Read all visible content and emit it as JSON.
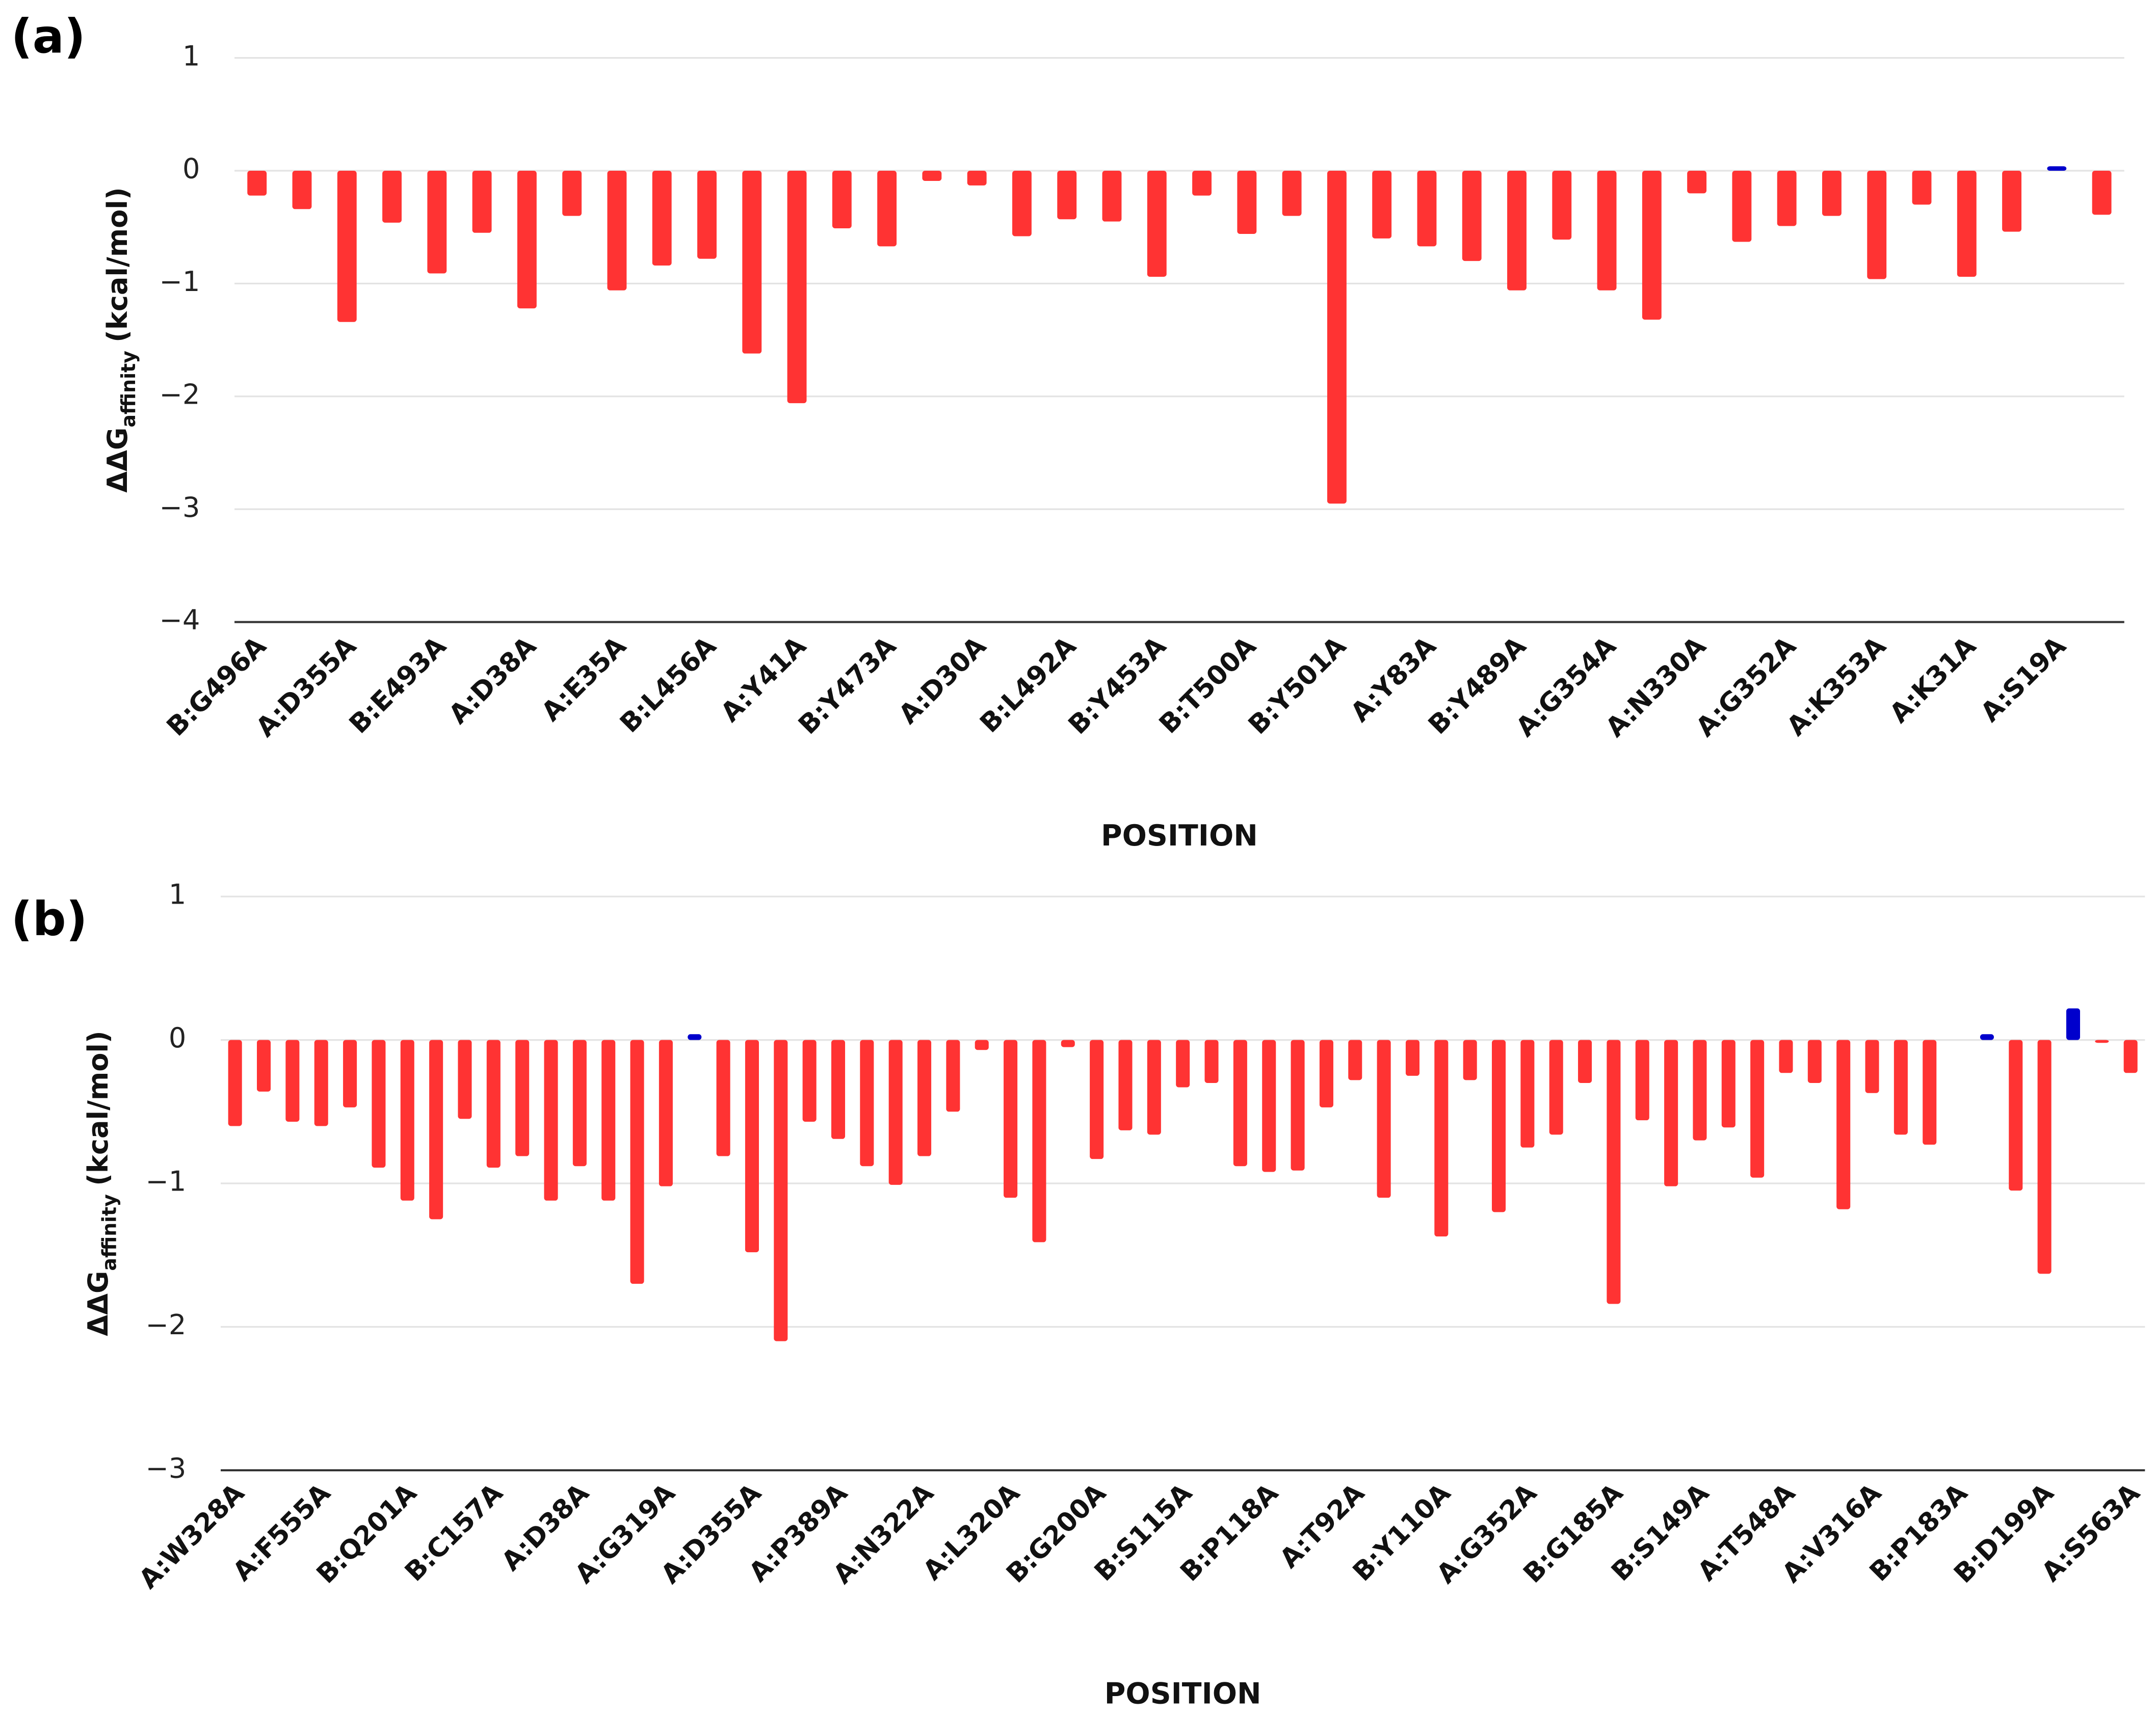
{
  "chart_data": [
    {
      "type": "bar",
      "panel_label": "(a)",
      "x_label": "POSITION",
      "y_label": {
        "main": "ΔΔG",
        "sub": "affinity",
        "unit": "(kcal/mol)"
      },
      "categories": [
        "B:G496A",
        null,
        "A:D355A",
        null,
        "B:E493A",
        null,
        "A:D38A",
        null,
        "A:E35A",
        null,
        "B:L456A",
        null,
        "A:Y41A",
        null,
        "B:Y473A",
        null,
        "A:D30A",
        null,
        "B:L492A",
        null,
        "B:Y453A",
        null,
        "B:T500A",
        null,
        "B:Y501A",
        null,
        "A:Y83A",
        null,
        "B:Y489A",
        null,
        "A:G354A",
        null,
        "A:N330A",
        null,
        "A:G352A",
        null,
        "A:K353A",
        null,
        "A:K31A",
        null,
        "A:S19A",
        null
      ],
      "values": [
        -0.22,
        -0.34,
        -1.34,
        -0.46,
        -0.91,
        -0.55,
        -1.22,
        -0.4,
        -1.06,
        -0.84,
        -0.78,
        -1.62,
        -2.06,
        -0.51,
        -0.67,
        -0.09,
        -0.13,
        -0.58,
        -0.43,
        -0.45,
        -0.94,
        -0.22,
        -0.56,
        -0.4,
        -2.95,
        -0.6,
        -0.67,
        -0.8,
        -1.06,
        -0.61,
        -1.06,
        -1.32,
        -0.2,
        -0.63,
        -0.49,
        -0.4,
        -0.96,
        -0.3,
        -0.94,
        -0.54,
        0.04,
        -0.39
      ],
      "color": "#ff3333",
      "positive_color": "#0000cc",
      "ylim": [
        -4,
        1
      ],
      "yticks": [
        {
          "value": -4,
          "label": "−4"
        },
        {
          "value": -3,
          "label": "−3"
        },
        {
          "value": -2,
          "label": "−2"
        },
        {
          "value": -1,
          "label": "−1"
        },
        0,
        1
      ],
      "grid": true
    },
    {
      "type": "bar",
      "panel_label": "(b)",
      "x_label": "POSITION",
      "y_label": {
        "main": "ΔΔG",
        "sub": "affinity",
        "unit": "(kcal/mol)"
      },
      "categories": [
        "A:W328A",
        null,
        null,
        "A:F555A",
        null,
        null,
        "B:Q201A",
        null,
        null,
        "B:C157A",
        null,
        null,
        "A:D38A",
        null,
        null,
        "A:G319A",
        null,
        null,
        "A:D355A",
        null,
        null,
        "A:P389A",
        null,
        null,
        "A:N322A",
        null,
        null,
        "A:L320A",
        null,
        null,
        "B:G200A",
        null,
        null,
        "B:S115A",
        null,
        null,
        "B:P118A",
        null,
        null,
        "A:T92A",
        null,
        null,
        "B:Y110A",
        null,
        null,
        "A:G352A",
        null,
        null,
        "B:G185A",
        null,
        null,
        "B:S149A",
        null,
        null,
        "A:T548A",
        null,
        null,
        "A:V316A",
        null,
        null,
        "B:P183A",
        null,
        null,
        "B:D199A",
        null,
        null,
        "A:S563A"
      ],
      "values": [
        -0.6,
        -0.36,
        -0.57,
        -0.6,
        -0.47,
        -0.89,
        -1.12,
        -1.25,
        -0.55,
        -0.89,
        -0.81,
        -1.12,
        -0.88,
        -1.12,
        -1.7,
        -1.02,
        0.04,
        -0.81,
        -1.48,
        -2.1,
        -0.57,
        -0.69,
        -0.88,
        -1.01,
        -0.81,
        -0.5,
        -0.07,
        -1.1,
        -1.41,
        -0.05,
        -0.83,
        -0.63,
        -0.66,
        -0.33,
        -0.3,
        -0.88,
        -0.92,
        -0.91,
        -0.47,
        -0.28,
        -1.1,
        -0.25,
        -1.37,
        -0.28,
        -1.2,
        -0.75,
        -0.66,
        -0.3,
        -1.84,
        -0.56,
        -1.02,
        -0.7,
        -0.61,
        -0.96,
        -0.23,
        -0.3,
        -1.18,
        -0.37,
        -0.66,
        -0.73,
        0,
        0.04,
        -1.05,
        -1.63,
        0.22,
        -0.02,
        -0.23
      ],
      "color": "#ff3333",
      "positive_color": "#0000cc",
      "ylim": [
        -3,
        1
      ],
      "yticks": [
        {
          "value": -3,
          "label": "−3"
        },
        {
          "value": -2,
          "label": "−2"
        },
        {
          "value": -1,
          "label": "−1"
        },
        0,
        1
      ],
      "grid": true
    }
  ]
}
